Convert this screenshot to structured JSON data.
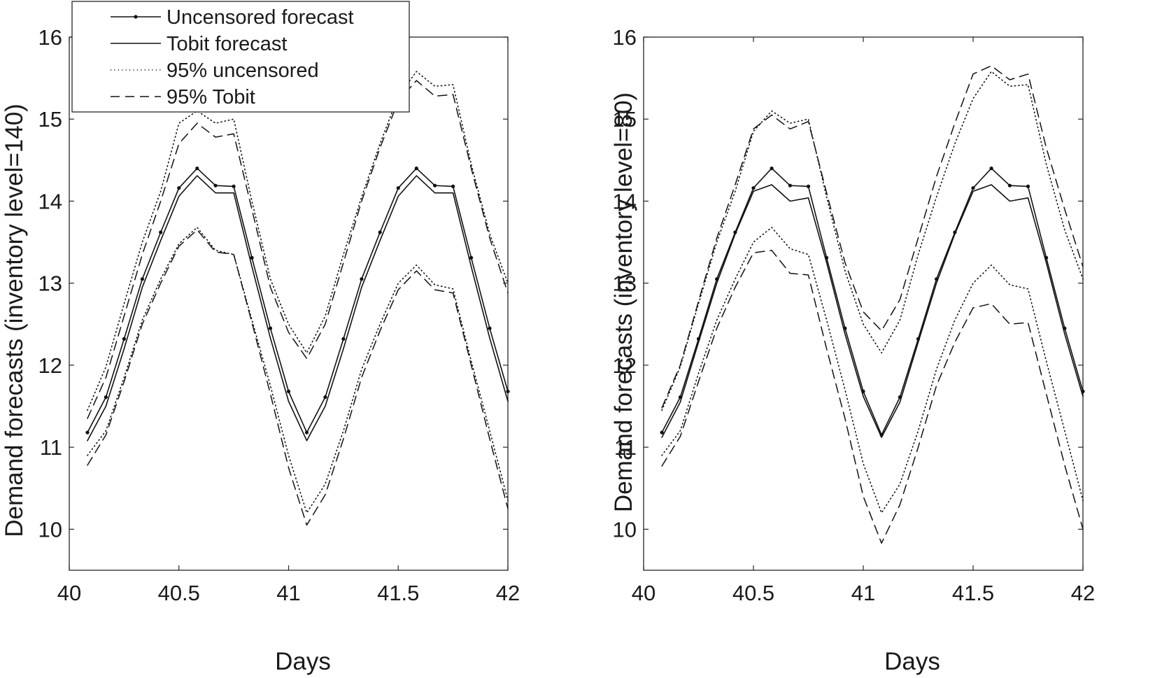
{
  "chart_data": [
    {
      "type": "line",
      "title": "",
      "xlabel": "Days",
      "ylabel": "Demand forecasts (inventory level=140)",
      "xlim": [
        40,
        42
      ],
      "ylim": [
        9.5,
        16
      ],
      "xticks": [
        40,
        40.5,
        41,
        41.5,
        42
      ],
      "xtick_labels": [
        "40",
        "40.5",
        "41",
        "41.5",
        "42"
      ],
      "yticks": [
        10,
        11,
        12,
        13,
        14,
        15,
        16
      ],
      "ytick_labels": [
        "10",
        "11",
        "12",
        "13",
        "14",
        "15",
        "16"
      ],
      "grid": false,
      "legend": {
        "position": "top-left",
        "entries": [
          "Uncensored forecast",
          "Tobit forecast",
          "95% uncensored",
          "95% Tobit"
        ]
      },
      "x": [
        40.083,
        40.167,
        40.25,
        40.333,
        40.417,
        40.5,
        40.583,
        40.667,
        40.75,
        40.833,
        40.917,
        41.0,
        41.083,
        41.167,
        41.25,
        41.333,
        41.417,
        41.5,
        41.583,
        41.667,
        41.75,
        41.833,
        41.917,
        42.0
      ],
      "series": [
        {
          "name": "Uncensored forecast",
          "style": "solid-dot",
          "values": [
            11.18,
            11.61,
            12.32,
            13.05,
            13.62,
            14.16,
            14.4,
            14.19,
            14.18,
            13.31,
            12.45,
            11.68,
            11.18,
            11.61,
            12.32,
            13.05,
            13.62,
            14.16,
            14.4,
            14.19,
            14.18,
            13.31,
            12.45,
            11.68
          ]
        },
        {
          "name": "Tobit forecast",
          "style": "solid",
          "values": [
            11.08,
            11.5,
            12.2,
            12.95,
            13.52,
            14.06,
            14.31,
            14.1,
            14.1,
            13.2,
            12.33,
            11.56,
            11.08,
            11.5,
            12.2,
            12.95,
            13.52,
            14.06,
            14.31,
            14.1,
            14.1,
            13.2,
            12.33,
            11.56
          ]
        },
        {
          "name": "95% uncensored upper",
          "style": "dotted",
          "values": [
            11.45,
            11.98,
            12.75,
            13.5,
            14.12,
            14.95,
            15.1,
            14.95,
            15.0,
            14.0,
            13.05,
            12.5,
            12.15,
            12.6,
            13.35,
            14.05,
            14.7,
            15.28,
            15.58,
            15.4,
            15.42,
            14.45,
            13.6,
            13.0
          ]
        },
        {
          "name": "95% uncensored lower",
          "style": "dotted",
          "values": [
            10.9,
            11.2,
            11.85,
            12.55,
            13.05,
            13.48,
            13.68,
            13.4,
            13.35,
            12.55,
            11.75,
            10.9,
            10.2,
            10.55,
            11.2,
            11.95,
            12.5,
            13.0,
            13.22,
            12.98,
            12.93,
            12.05,
            11.2,
            10.35
          ]
        },
        {
          "name": "95% Tobit upper",
          "style": "dashed",
          "values": [
            11.35,
            11.85,
            12.6,
            13.35,
            14.0,
            14.7,
            14.95,
            14.78,
            14.82,
            13.9,
            12.95,
            12.4,
            12.08,
            12.5,
            13.25,
            14.0,
            14.65,
            15.22,
            15.47,
            15.28,
            15.3,
            14.4,
            13.55,
            12.88
          ]
        },
        {
          "name": "95% Tobit lower",
          "style": "dashed",
          "values": [
            10.78,
            11.15,
            11.8,
            12.5,
            13.0,
            13.45,
            13.65,
            13.38,
            13.35,
            12.52,
            11.65,
            10.75,
            10.05,
            10.42,
            11.1,
            11.85,
            12.42,
            12.92,
            13.15,
            12.92,
            12.88,
            12.0,
            11.1,
            10.25
          ]
        }
      ]
    },
    {
      "type": "line",
      "title": "",
      "xlabel": "Days",
      "ylabel": "Demand forecasts (inventory level=80)",
      "xlim": [
        40,
        42
      ],
      "ylim": [
        9.5,
        16
      ],
      "xticks": [
        40,
        40.5,
        41,
        41.5,
        42
      ],
      "xtick_labels": [
        "40",
        "40.5",
        "41",
        "41.5",
        "42"
      ],
      "yticks": [
        10,
        11,
        12,
        13,
        14,
        15,
        16
      ],
      "ytick_labels": [
        "10",
        "11",
        "12",
        "13",
        "14",
        "15",
        "16"
      ],
      "grid": false,
      "x": [
        40.083,
        40.167,
        40.25,
        40.333,
        40.417,
        40.5,
        40.583,
        40.667,
        40.75,
        40.833,
        40.917,
        41.0,
        41.083,
        41.167,
        41.25,
        41.333,
        41.417,
        41.5,
        41.583,
        41.667,
        41.75,
        41.833,
        41.917,
        42.0
      ],
      "series": [
        {
          "name": "Uncensored forecast",
          "style": "solid-dot",
          "values": [
            11.18,
            11.61,
            12.32,
            13.05,
            13.62,
            14.16,
            14.4,
            14.19,
            14.18,
            13.31,
            12.45,
            11.68,
            11.15,
            11.61,
            12.32,
            13.05,
            13.62,
            14.16,
            14.4,
            14.19,
            14.18,
            13.31,
            12.45,
            11.68
          ]
        },
        {
          "name": "Tobit forecast",
          "style": "solid",
          "values": [
            11.12,
            11.55,
            12.28,
            13.0,
            13.6,
            14.12,
            14.2,
            14.0,
            14.04,
            13.25,
            12.38,
            11.62,
            11.12,
            11.55,
            12.28,
            13.0,
            13.6,
            14.12,
            14.2,
            14.0,
            14.04,
            13.25,
            12.38,
            11.62
          ]
        },
        {
          "name": "95% uncensored upper",
          "style": "dotted",
          "values": [
            11.45,
            11.98,
            12.75,
            13.5,
            14.12,
            14.85,
            15.1,
            14.95,
            15.0,
            14.05,
            13.15,
            12.5,
            12.15,
            12.55,
            13.35,
            14.05,
            14.7,
            15.25,
            15.58,
            15.4,
            15.42,
            14.45,
            13.65,
            13.05
          ]
        },
        {
          "name": "95% uncensored lower",
          "style": "dotted",
          "values": [
            10.9,
            11.2,
            11.9,
            12.55,
            13.05,
            13.5,
            13.68,
            13.42,
            13.35,
            12.55,
            11.7,
            10.8,
            10.2,
            10.55,
            11.2,
            11.95,
            12.55,
            13.0,
            13.22,
            12.98,
            12.93,
            12.05,
            11.2,
            10.35
          ]
        },
        {
          "name": "95% Tobit upper",
          "style": "dashed",
          "values": [
            11.48,
            12.0,
            12.78,
            13.55,
            14.2,
            14.88,
            15.05,
            14.88,
            14.97,
            14.1,
            13.25,
            12.65,
            12.42,
            12.8,
            13.55,
            14.3,
            14.95,
            15.55,
            15.65,
            15.48,
            15.55,
            14.65,
            13.9,
            13.2
          ]
        },
        {
          "name": "95% Tobit lower",
          "style": "dashed",
          "values": [
            10.77,
            11.13,
            11.8,
            12.45,
            12.95,
            13.37,
            13.4,
            13.12,
            13.1,
            12.2,
            11.35,
            10.4,
            9.83,
            10.3,
            11.0,
            11.75,
            12.28,
            12.7,
            12.75,
            12.5,
            12.52,
            11.65,
            10.78,
            10.0
          ]
        }
      ]
    }
  ]
}
